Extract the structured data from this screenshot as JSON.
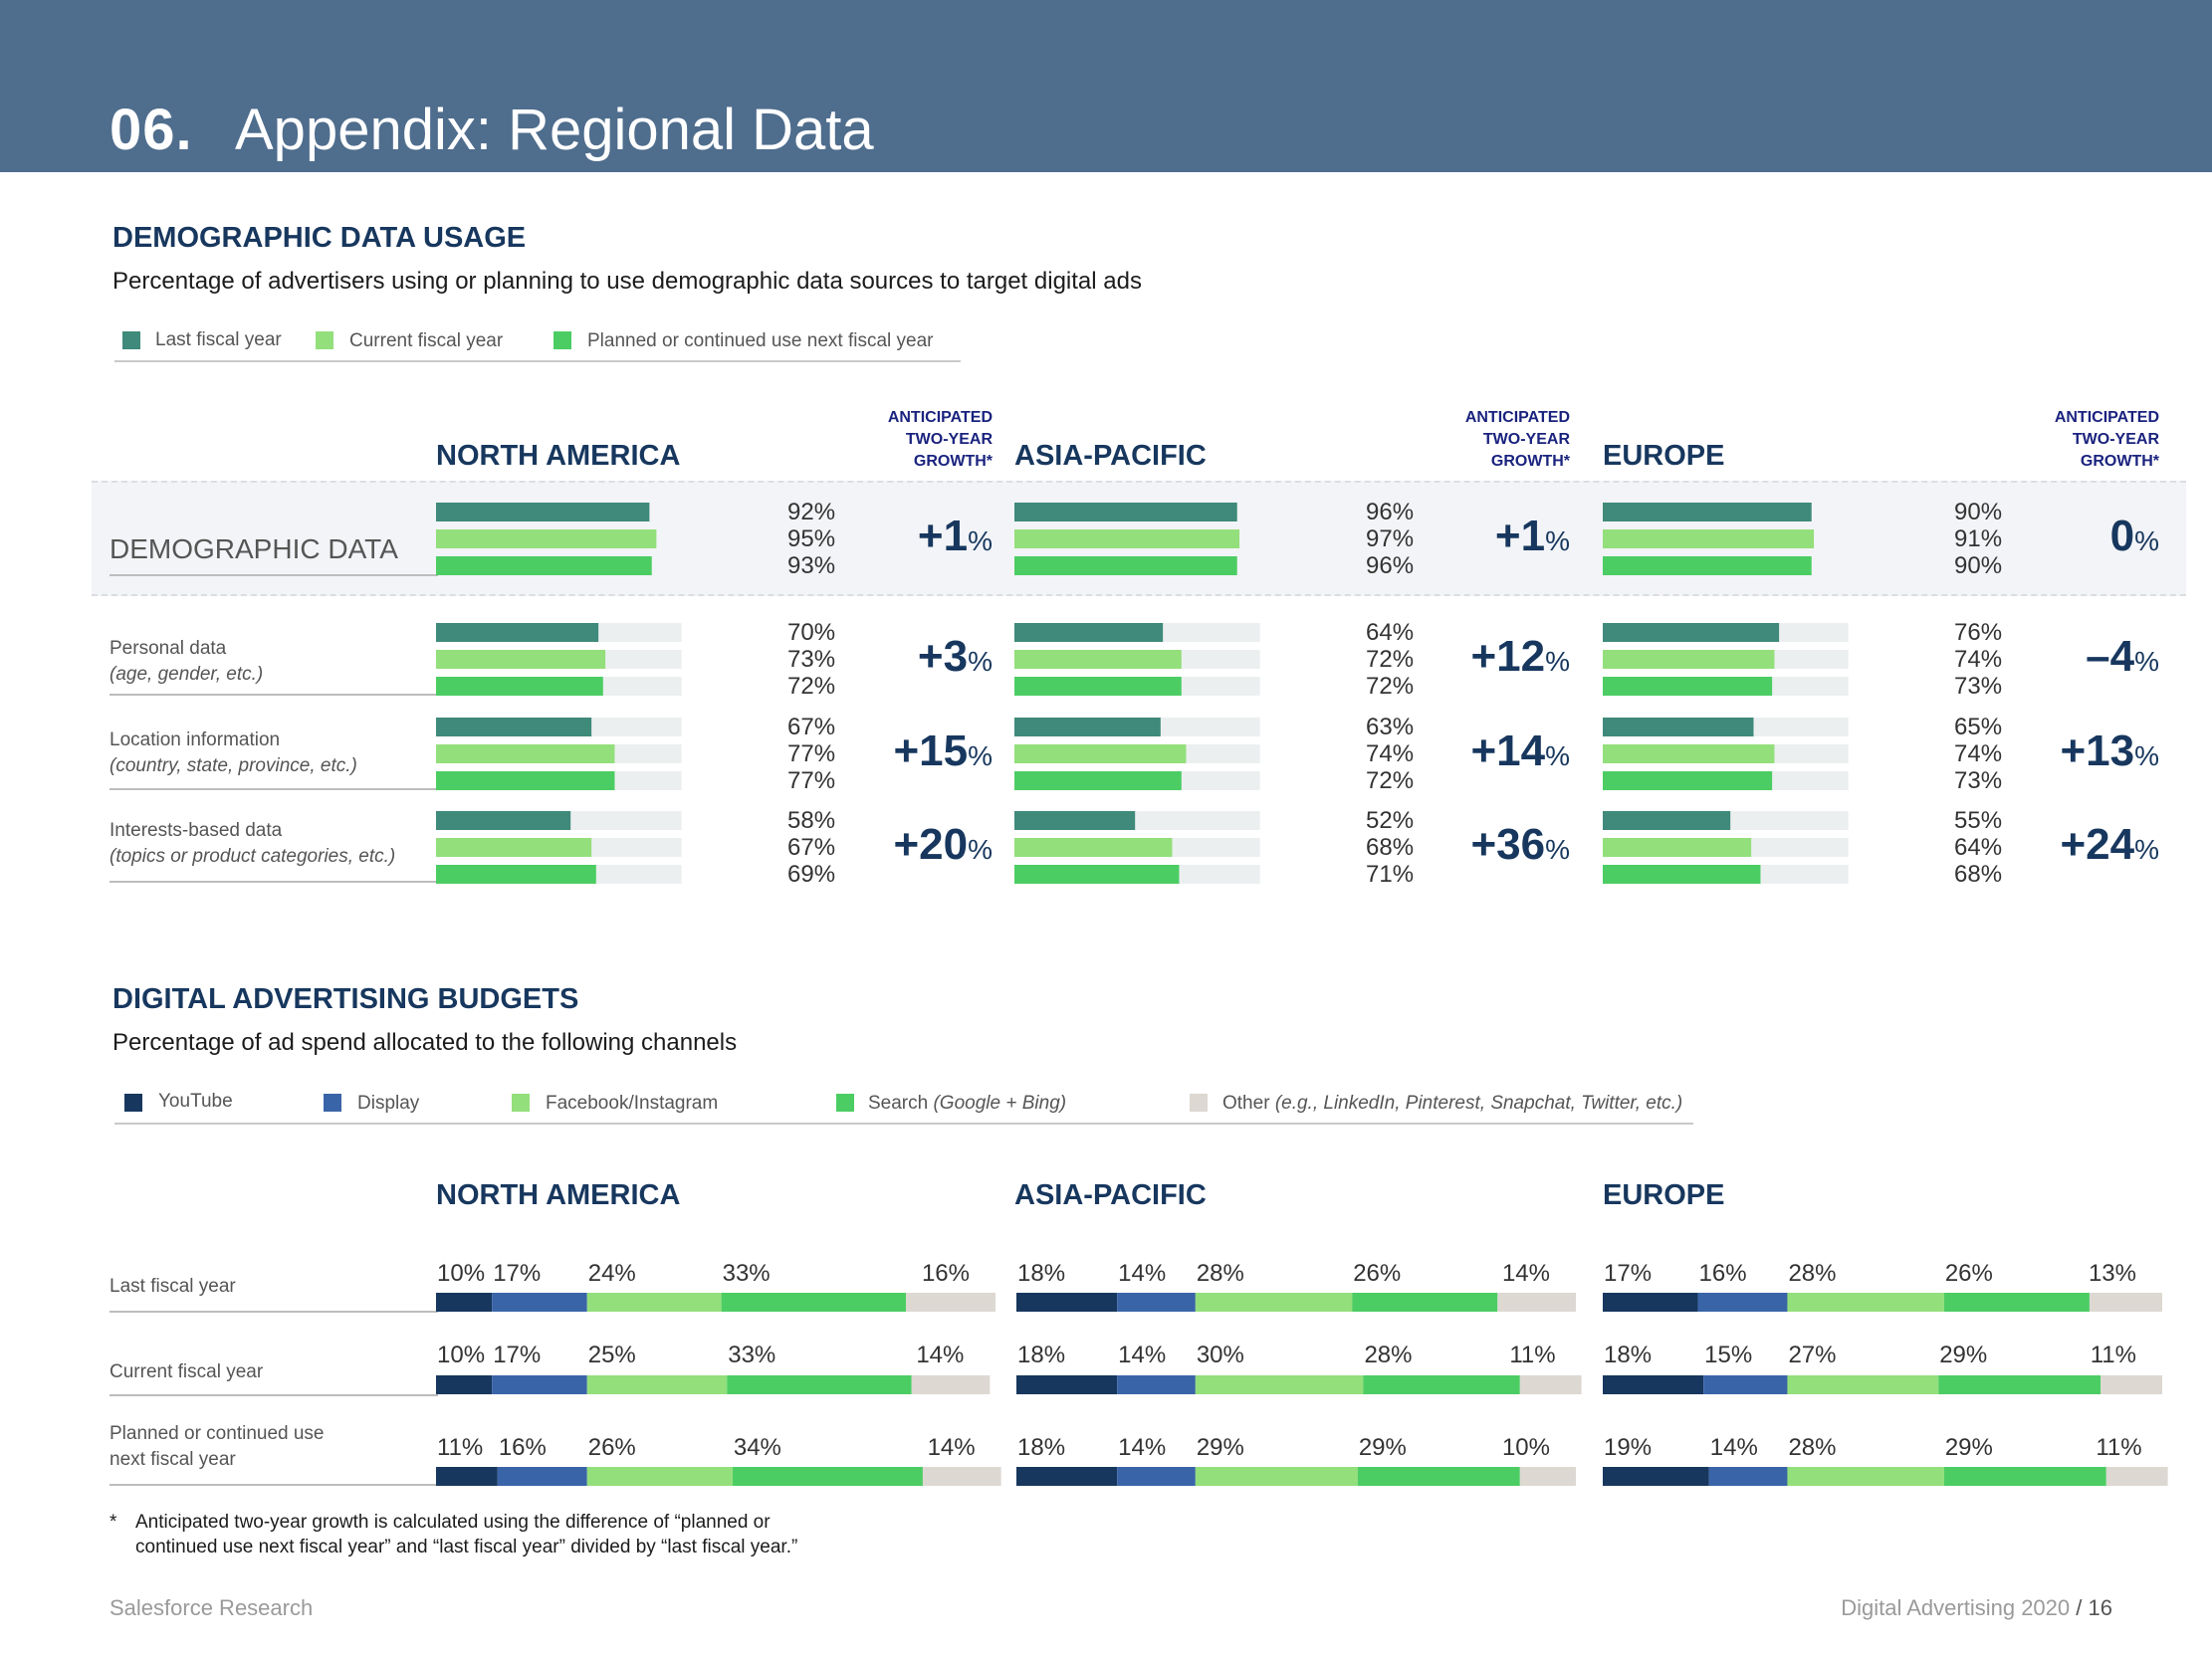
{
  "header": {
    "section_number": "06.",
    "title": "Appendix: Regional Data"
  },
  "colors": {
    "header_bg": "#4f6d8d",
    "last": "#3f8a7a",
    "current": "#93df7b",
    "planned": "#4ccd63",
    "track": "#eceff0",
    "youtube": "#17375e",
    "display": "#3a64a8",
    "facebook": "#93df7b",
    "search": "#4ccd63",
    "other": "#ddd8d2",
    "navy": "#17375e"
  },
  "demographic": {
    "heading": "DEMOGRAPHIC DATA USAGE",
    "subtitle": "Percentage of advertisers using or planning to use demographic data sources to target digital ads",
    "legend": [
      "Last fiscal year",
      "Current fiscal year",
      "Planned or continued use next fiscal year"
    ],
    "growth_header": [
      "ANTICIPATED",
      "TWO-YEAR",
      "GROWTH*"
    ],
    "regions": [
      "NORTH AMERICA",
      "ASIA-PACIFIC",
      "EUROPE"
    ],
    "rows": [
      {
        "label": "DEMOGRAPHIC DATA",
        "sublabel": ""
      },
      {
        "label": "Personal data",
        "sublabel": "(age, gender, etc.)"
      },
      {
        "label": "Location information",
        "sublabel": "(country, state, province, etc.)"
      },
      {
        "label": "Interests-based data",
        "sublabel": "(topics or product categories, etc.)"
      }
    ],
    "growth_values": [
      [
        "+1",
        "+1",
        "0"
      ],
      [
        "+3",
        "+12",
        "–4"
      ],
      [
        "+15",
        "+14",
        "+13"
      ],
      [
        "+20",
        "+36",
        "+24"
      ]
    ],
    "percent_sign": "%"
  },
  "budgets": {
    "heading": "DIGITAL ADVERTISING BUDGETS",
    "subtitle": "Percentage of ad spend allocated to the following channels",
    "legend": [
      {
        "label": "YouTube",
        "note": ""
      },
      {
        "label": "Display",
        "note": ""
      },
      {
        "label": "Facebook/Instagram",
        "note": ""
      },
      {
        "label": "Search",
        "note": "(Google + Bing)"
      },
      {
        "label": "Other",
        "note": "(e.g., LinkedIn, Pinterest, Snapchat, Twitter, etc.)"
      }
    ],
    "regions": [
      "NORTH AMERICA",
      "ASIA-PACIFIC",
      "EUROPE"
    ],
    "rows": [
      {
        "label": "Last fiscal year",
        "label2": ""
      },
      {
        "label": "Current fiscal year",
        "label2": ""
      },
      {
        "label": "Planned or continued use",
        "label2": "next fiscal year"
      }
    ]
  },
  "footnote": {
    "marker": "*",
    "line1": "Anticipated two-year growth is calculated using the difference of “planned or",
    "line2": "continued use next fiscal year” and “last fiscal year” divided by “last fiscal year.”"
  },
  "footer": {
    "left": "Salesforce Research",
    "right": "Digital Advertising 2020",
    "sep": "/",
    "page": "16"
  },
  "chart_data": [
    {
      "type": "bar",
      "title": "DEMOGRAPHIC DATA USAGE",
      "subtitle": "Percentage of advertisers using or planning to use demographic data sources to target digital ads",
      "categories": [
        "DEMOGRAPHIC DATA",
        "Personal data",
        "Location information",
        "Interests-based data"
      ],
      "regions": [
        "NORTH AMERICA",
        "ASIA-PACIFIC",
        "EUROPE"
      ],
      "series_names": [
        "Last fiscal year",
        "Current fiscal year",
        "Planned or continued use next fiscal year"
      ],
      "values": {
        "NORTH AMERICA": [
          [
            92,
            95,
            93
          ],
          [
            70,
            73,
            72
          ],
          [
            67,
            77,
            77
          ],
          [
            58,
            67,
            69
          ]
        ],
        "ASIA-PACIFIC": [
          [
            96,
            97,
            96
          ],
          [
            64,
            72,
            72
          ],
          [
            63,
            74,
            72
          ],
          [
            52,
            68,
            71
          ]
        ],
        "EUROPE": [
          [
            90,
            91,
            90
          ],
          [
            76,
            74,
            73
          ],
          [
            65,
            74,
            73
          ],
          [
            55,
            64,
            68
          ]
        ]
      },
      "growth": {
        "NORTH AMERICA": [
          1,
          3,
          15,
          20
        ],
        "ASIA-PACIFIC": [
          1,
          12,
          14,
          36
        ],
        "EUROPE": [
          0,
          -4,
          13,
          24
        ]
      },
      "unit": "%",
      "ylim": [
        0,
        100
      ]
    },
    {
      "type": "bar",
      "stacked": true,
      "title": "DIGITAL ADVERTISING BUDGETS",
      "subtitle": "Percentage of ad spend allocated to the following channels",
      "categories": [
        "Last fiscal year",
        "Current fiscal year",
        "Planned or continued use next fiscal year"
      ],
      "regions": [
        "NORTH AMERICA",
        "ASIA-PACIFIC",
        "EUROPE"
      ],
      "series_names": [
        "YouTube",
        "Display",
        "Facebook/Instagram",
        "Search (Google + Bing)",
        "Other"
      ],
      "values": {
        "NORTH AMERICA": [
          [
            10,
            17,
            24,
            33,
            16
          ],
          [
            10,
            17,
            25,
            33,
            14
          ],
          [
            11,
            16,
            26,
            34,
            14
          ]
        ],
        "ASIA-PACIFIC": [
          [
            18,
            14,
            28,
            26,
            14
          ],
          [
            18,
            14,
            30,
            28,
            11
          ],
          [
            18,
            14,
            29,
            29,
            10
          ]
        ],
        "EUROPE": [
          [
            17,
            16,
            28,
            26,
            13
          ],
          [
            18,
            15,
            27,
            29,
            11
          ],
          [
            19,
            14,
            28,
            29,
            11
          ]
        ]
      },
      "unit": "%"
    }
  ]
}
